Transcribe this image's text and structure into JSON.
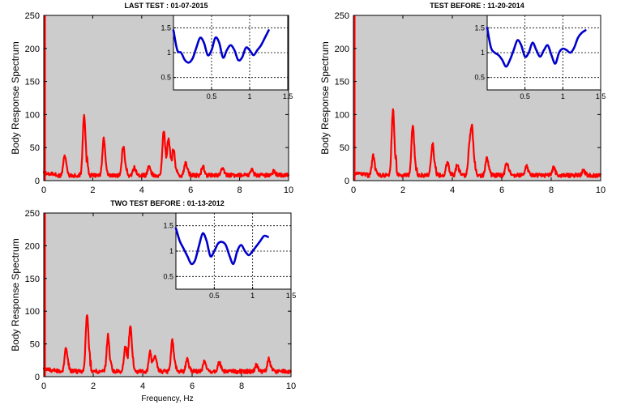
{
  "chart_data": [
    {
      "type": "line",
      "title": "LAST TEST : 01-07-2015",
      "xlabel": "",
      "ylabel": "Body Response Spectrum",
      "xlim": [
        0,
        10
      ],
      "ylim": [
        0,
        250
      ],
      "xticks": [
        "0",
        "2",
        "4",
        "6",
        "8",
        "10"
      ],
      "yticks": [
        "0",
        "50",
        "100",
        "150",
        "200",
        "250"
      ],
      "background": "#cccccc",
      "line_color": "#ff0000",
      "baseline": 8,
      "peaks": [
        [
          0.85,
          30
        ],
        [
          1.65,
          92
        ],
        [
          2.45,
          55
        ],
        [
          3.25,
          45
        ],
        [
          3.7,
          12
        ],
        [
          4.3,
          14
        ],
        [
          4.9,
          68
        ],
        [
          5.1,
          55
        ],
        [
          5.3,
          38
        ],
        [
          5.8,
          20
        ],
        [
          6.5,
          14
        ],
        [
          7.3,
          10
        ],
        [
          8.5,
          8
        ],
        [
          9.4,
          6
        ]
      ],
      "inset": {
        "xlim": [
          0,
          1.5
        ],
        "ylim": [
          0.25,
          1.75
        ],
        "xticks": [
          "0.5",
          "1",
          "1.5"
        ],
        "yticks": [
          "0.5",
          "1",
          "1.5"
        ],
        "line_color": "#0000cc",
        "x": [
          0.0,
          0.05,
          0.1,
          0.15,
          0.2,
          0.25,
          0.3,
          0.35,
          0.4,
          0.45,
          0.5,
          0.55,
          0.6,
          0.65,
          0.7,
          0.75,
          0.8,
          0.85,
          0.9,
          0.95,
          1.0,
          1.05,
          1.1,
          1.15,
          1.2,
          1.25
        ],
        "y": [
          1.45,
          1.05,
          1.0,
          0.85,
          0.8,
          0.88,
          1.1,
          1.3,
          1.2,
          0.95,
          1.05,
          1.3,
          1.2,
          0.9,
          1.05,
          1.15,
          1.05,
          0.85,
          0.9,
          1.1,
          1.05,
          0.95,
          1.05,
          1.15,
          1.3,
          1.45
        ]
      }
    },
    {
      "type": "line",
      "title": "TEST BEFORE : 11-20-2014",
      "xlabel": "",
      "ylabel": "Body Response Spectrum",
      "xlim": [
        0,
        10
      ],
      "ylim": [
        0,
        250
      ],
      "xticks": [
        "0",
        "2",
        "4",
        "6",
        "8",
        "10"
      ],
      "yticks": [
        "0",
        "50",
        "100",
        "150",
        "200",
        "250"
      ],
      "background": "#cccccc",
      "line_color": "#ff0000",
      "baseline": 8,
      "peaks": [
        [
          0.8,
          30
        ],
        [
          1.6,
          98
        ],
        [
          2.4,
          75
        ],
        [
          3.2,
          48
        ],
        [
          3.8,
          20
        ],
        [
          4.2,
          16
        ],
        [
          4.7,
          42
        ],
        [
          4.8,
          62
        ],
        [
          5.4,
          28
        ],
        [
          6.2,
          20
        ],
        [
          7.0,
          14
        ],
        [
          8.1,
          12
        ],
        [
          9.3,
          8
        ]
      ],
      "inset": {
        "xlim": [
          0,
          1.5
        ],
        "ylim": [
          0.25,
          1.75
        ],
        "xticks": [
          "0.5",
          "1",
          "1.5"
        ],
        "yticks": [
          "0.5",
          "1",
          "1.5"
        ],
        "line_color": "#0000cc",
        "x": [
          0.0,
          0.05,
          0.1,
          0.15,
          0.2,
          0.25,
          0.3,
          0.35,
          0.4,
          0.45,
          0.5,
          0.55,
          0.6,
          0.65,
          0.7,
          0.75,
          0.8,
          0.85,
          0.9,
          0.95,
          1.0,
          1.05,
          1.1,
          1.15,
          1.2,
          1.25,
          1.3
        ],
        "y": [
          1.5,
          1.1,
          1.0,
          0.95,
          0.85,
          0.72,
          0.85,
          1.05,
          1.25,
          1.15,
          0.92,
          1.0,
          1.2,
          1.05,
          0.92,
          1.05,
          1.15,
          0.95,
          0.78,
          1.0,
          1.08,
          1.05,
          1.0,
          1.1,
          1.3,
          1.4,
          1.45
        ]
      }
    },
    {
      "type": "line",
      "title": "TWO TEST BEFORE : 01-13-2012",
      "xlabel": "Frequency, Hz",
      "ylabel": "Body Response Spectrum",
      "xlim": [
        0,
        10
      ],
      "ylim": [
        0,
        250
      ],
      "xticks": [
        "0",
        "2",
        "4",
        "6",
        "8",
        "10"
      ],
      "yticks": [
        "0",
        "50",
        "100",
        "150",
        "200",
        "250"
      ],
      "background": "#cccccc",
      "line_color": "#ff0000",
      "baseline": 8,
      "peaks": [
        [
          0.9,
          35
        ],
        [
          1.75,
          88
        ],
        [
          2.6,
          55
        ],
        [
          3.5,
          68
        ],
        [
          3.3,
          40
        ],
        [
          4.3,
          30
        ],
        [
          4.5,
          25
        ],
        [
          5.2,
          48
        ],
        [
          5.8,
          20
        ],
        [
          6.5,
          16
        ],
        [
          7.1,
          14
        ],
        [
          8.6,
          10
        ],
        [
          9.1,
          20
        ]
      ],
      "inset": {
        "xlim": [
          0,
          1.5
        ],
        "ylim": [
          0.25,
          1.75
        ],
        "xticks": [
          "0.5",
          "1",
          "1.5"
        ],
        "yticks": [
          "0.5",
          "1",
          "1.5"
        ],
        "line_color": "#0000cc",
        "x": [
          0.0,
          0.05,
          0.1,
          0.15,
          0.2,
          0.25,
          0.3,
          0.35,
          0.4,
          0.45,
          0.5,
          0.55,
          0.6,
          0.65,
          0.7,
          0.75,
          0.8,
          0.85,
          0.9,
          0.95,
          1.0,
          1.05,
          1.1,
          1.15,
          1.2
        ],
        "y": [
          1.45,
          1.2,
          1.05,
          0.9,
          0.75,
          0.82,
          1.1,
          1.35,
          1.2,
          0.9,
          1.0,
          1.15,
          1.18,
          1.12,
          0.9,
          0.75,
          1.0,
          1.12,
          1.0,
          0.92,
          1.0,
          1.1,
          1.2,
          1.3,
          1.28
        ]
      }
    }
  ]
}
